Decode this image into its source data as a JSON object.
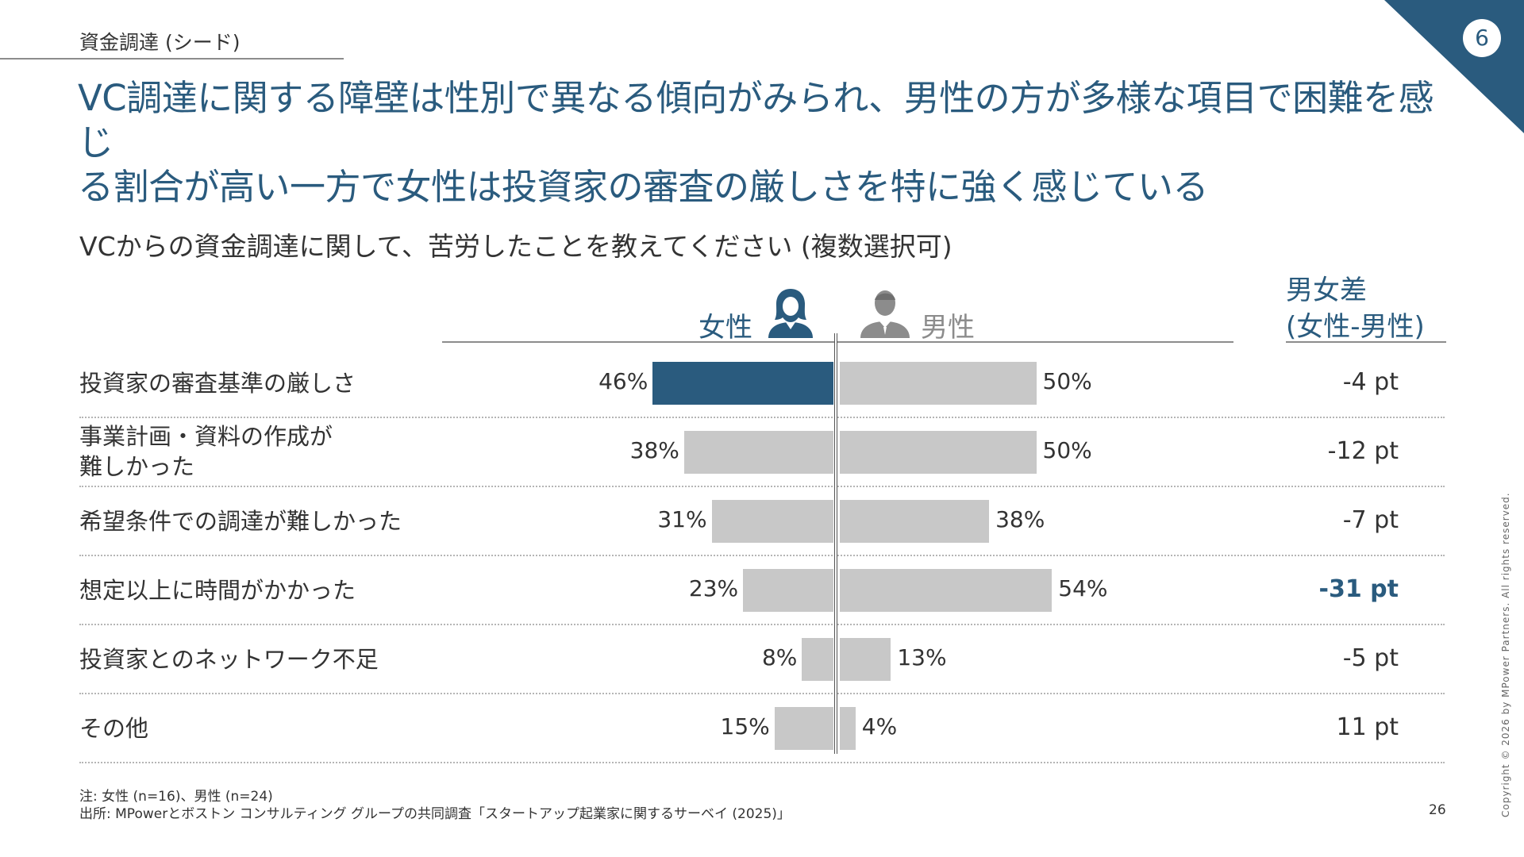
{
  "header": {
    "section": "資金調達 (シード)",
    "page_badge": "6",
    "headline_line1": "VC調達に関する障壁は性別で異なる傾向がみられ、男性の方が多様な項目で困難を感じ",
    "headline_line2": "る割合が高い一方で女性は投資家の審査の厳しさを特に強く感じている"
  },
  "colors": {
    "accent": "#2a5b7e",
    "bar_gray": "#c8c8c8",
    "muted": "#8c8c8c"
  },
  "chart_data": {
    "type": "bar",
    "title": "VCからの資金調達に関して、苦労したことを教えてください (複数選択可)",
    "series_labels": {
      "female": "女性",
      "male": "男性"
    },
    "diff_header_line1": "男女差",
    "diff_header_line2": "(女性-男性)",
    "categories": [
      {
        "label_lines": [
          "投資家の審査基準の厳しさ"
        ],
        "female": 46,
        "male": 50,
        "female_text": "46%",
        "male_text": "50%",
        "diff": "-4 pt",
        "highlight_female": true,
        "highlight_diff": false
      },
      {
        "label_lines": [
          "事業計画・資料の作成が",
          "難しかった"
        ],
        "female": 38,
        "male": 50,
        "female_text": "38%",
        "male_text": "50%",
        "diff": "-12 pt",
        "highlight_female": false,
        "highlight_diff": false
      },
      {
        "label_lines": [
          "希望条件での調達が難しかった"
        ],
        "female": 31,
        "male": 38,
        "female_text": "31%",
        "male_text": "38%",
        "diff": "-7 pt",
        "highlight_female": false,
        "highlight_diff": false
      },
      {
        "label_lines": [
          "想定以上に時間がかかった"
        ],
        "female": 23,
        "male": 54,
        "female_text": "23%",
        "male_text": "54%",
        "diff": "-31 pt",
        "highlight_female": false,
        "highlight_diff": true
      },
      {
        "label_lines": [
          "投資家とのネットワーク不足"
        ],
        "female": 8,
        "male": 13,
        "female_text": "8%",
        "male_text": "13%",
        "diff": "-5 pt",
        "highlight_female": false,
        "highlight_diff": false
      },
      {
        "label_lines": [
          "その他"
        ],
        "female": 15,
        "male": 4,
        "female_text": "15%",
        "male_text": "4%",
        "diff": "11 pt",
        "highlight_female": false,
        "highlight_diff": false
      }
    ]
  },
  "footer": {
    "note": "注: 女性 (n=16)、男性 (n=24)",
    "source": "出所: MPowerとボストン コンサルティング グループの共同調査「スタートアップ起業家に関するサーベイ (2025)」",
    "page_number": "26",
    "copyright": "Copyright © 2026 by MPower Partners. All rights reserved."
  },
  "icons": {
    "female": "female-person-icon",
    "male": "male-person-icon"
  }
}
